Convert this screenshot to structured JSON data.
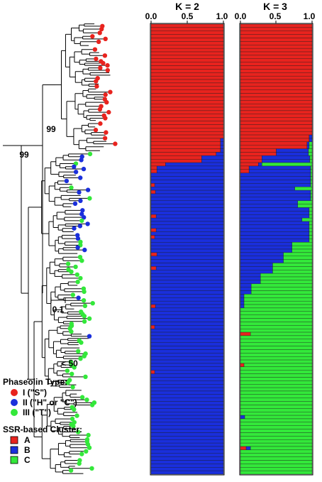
{
  "tree": {
    "bootstrap_labels": [
      "99",
      "99",
      "< 50"
    ],
    "scale_label": "0.1"
  },
  "legend": {
    "phaseolin_title": "Phaseolin Type:",
    "phaseolin_items": [
      {
        "label": "I (\"S\")",
        "color": "#e8231e"
      },
      {
        "label": "II (\"H\" or \"C\")",
        "color": "#1a2fdc"
      },
      {
        "label": "III (\"T\")",
        "color": "#33e83a"
      }
    ],
    "cluster_title": "SSR-based Cluster:",
    "cluster_items": [
      {
        "label": "A",
        "color": "#e8231e"
      },
      {
        "label": "B",
        "color": "#1a2fdc"
      },
      {
        "label": "C",
        "color": "#33e83a"
      }
    ]
  },
  "chart_data": [
    {
      "type": "bar",
      "orientation": "horizontal-stacked",
      "title": "K = 2",
      "xlim": [
        0,
        1
      ],
      "tick_labels": [
        "0.0",
        "0.5",
        "1.0"
      ],
      "n_individuals": 130,
      "series": [
        {
          "name": "A",
          "color": "#e8231e"
        },
        {
          "name": "B",
          "color": "#1a2fdc"
        }
      ],
      "segments": [
        {
          "from": 0,
          "to": 33,
          "A": 1.0,
          "B": 0.0
        },
        {
          "from": 33,
          "to": 37,
          "A": 0.96,
          "B": 0.04
        },
        {
          "from": 37,
          "to": 38,
          "A": 0.9,
          "B": 0.1
        },
        {
          "from": 38,
          "to": 40,
          "A": 0.7,
          "B": 0.3
        },
        {
          "from": 40,
          "to": 41,
          "A": 0.2,
          "B": 0.8
        },
        {
          "from": 41,
          "to": 43,
          "A": 0.08,
          "B": 0.92
        },
        {
          "from": 43,
          "to": 130,
          "A": 0.0,
          "B": 1.0
        }
      ],
      "row_overrides": [
        {
          "row": 46,
          "A": 0.05
        },
        {
          "row": 48,
          "A": 0.06
        },
        {
          "row": 55,
          "A": 0.07
        },
        {
          "row": 59,
          "A": 0.07
        },
        {
          "row": 61,
          "A": 0.05
        },
        {
          "row": 66,
          "A": 0.08
        },
        {
          "row": 70,
          "A": 0.07
        },
        {
          "row": 81,
          "A": 0.06
        },
        {
          "row": 87,
          "A": 0.05
        },
        {
          "row": 100,
          "A": 0.05
        }
      ]
    },
    {
      "type": "bar",
      "orientation": "horizontal-stacked",
      "title": "K = 3",
      "xlim": [
        0,
        1
      ],
      "tick_labels": [
        "0.0",
        "0.5",
        "1.0"
      ],
      "n_individuals": 130,
      "series": [
        {
          "name": "A",
          "color": "#e8231e"
        },
        {
          "name": "B",
          "color": "#1a2fdc"
        },
        {
          "name": "C",
          "color": "#33e83a"
        }
      ],
      "segments": [
        {
          "from": 0,
          "to": 32,
          "A": 1.0,
          "B": 0.0,
          "C": 0.0
        },
        {
          "from": 32,
          "to": 34,
          "A": 0.96,
          "B": 0.04,
          "C": 0.0
        },
        {
          "from": 34,
          "to": 36,
          "A": 0.93,
          "B": 0.03,
          "C": 0.04
        },
        {
          "from": 36,
          "to": 38,
          "A": 0.5,
          "B": 0.45,
          "C": 0.05
        },
        {
          "from": 38,
          "to": 40,
          "A": 0.3,
          "B": 0.67,
          "C": 0.03
        },
        {
          "from": 40,
          "to": 41,
          "A": 0.25,
          "B": 0.05,
          "C": 0.7
        },
        {
          "from": 41,
          "to": 43,
          "A": 0.12,
          "B": 0.86,
          "C": 0.02
        },
        {
          "from": 43,
          "to": 51,
          "A": 0.0,
          "B": 0.98,
          "C": 0.02
        },
        {
          "from": 51,
          "to": 53,
          "A": 0.0,
          "B": 0.8,
          "C": 0.2
        },
        {
          "from": 53,
          "to": 63,
          "A": 0.0,
          "B": 0.96,
          "C": 0.04
        },
        {
          "from": 63,
          "to": 66,
          "A": 0.0,
          "B": 0.72,
          "C": 0.28
        },
        {
          "from": 66,
          "to": 69,
          "A": 0.0,
          "B": 0.6,
          "C": 0.4
        },
        {
          "from": 69,
          "to": 72,
          "A": 0.0,
          "B": 0.45,
          "C": 0.55
        },
        {
          "from": 72,
          "to": 75,
          "A": 0.0,
          "B": 0.28,
          "C": 0.72
        },
        {
          "from": 75,
          "to": 78,
          "A": 0.0,
          "B": 0.15,
          "C": 0.85
        },
        {
          "from": 78,
          "to": 82,
          "A": 0.0,
          "B": 0.05,
          "C": 0.95
        },
        {
          "from": 82,
          "to": 130,
          "A": 0.0,
          "B": 0.0,
          "C": 1.0
        }
      ],
      "row_overrides": [
        {
          "row": 47,
          "A": 0.0,
          "B": 0.76,
          "C": 0.24
        },
        {
          "row": 56,
          "A": 0.0,
          "B": 0.86,
          "C": 0.14
        },
        {
          "row": 89,
          "A": 0.14,
          "B": 0.0,
          "C": 0.86
        },
        {
          "row": 98,
          "A": 0.05,
          "B": 0.0,
          "C": 0.95
        },
        {
          "row": 113,
          "A": 0.0,
          "B": 0.06,
          "C": 0.94
        },
        {
          "row": 122,
          "A": 0.08,
          "B": 0.06,
          "C": 0.86
        }
      ]
    }
  ]
}
